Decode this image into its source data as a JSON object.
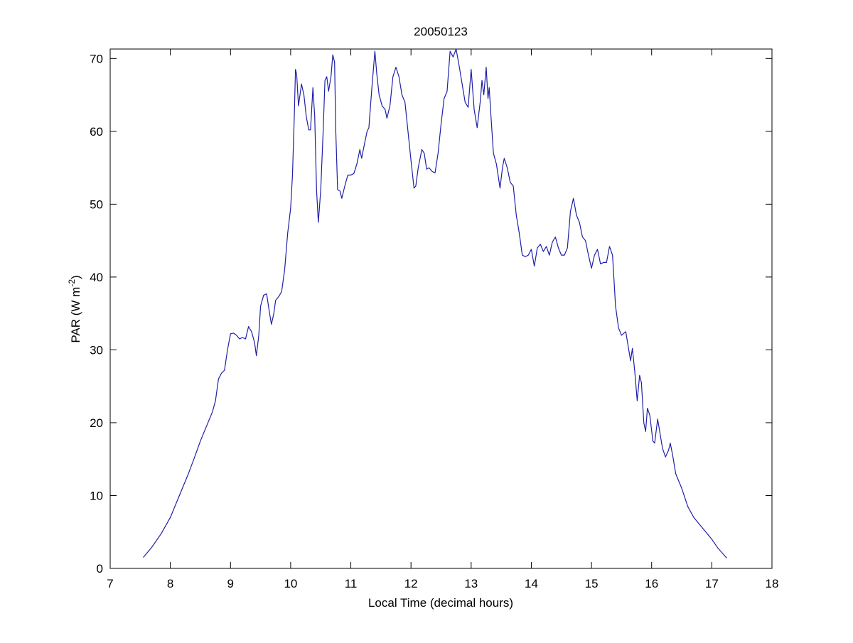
{
  "chart_data": {
    "type": "line",
    "title": "20050123",
    "x_label": "Local Time (decimal hours)",
    "y_label": [
      "PAR (W m",
      "-2",
      ")"
    ],
    "xlim": [
      7,
      18
    ],
    "xticks": [
      7,
      8,
      9,
      10,
      11,
      12,
      13,
      14,
      15,
      16,
      17,
      18
    ],
    "ylim": [
      0,
      71.3
    ],
    "yticks": [
      0,
      10,
      20,
      30,
      40,
      50,
      60,
      70
    ],
    "series": [
      {
        "color": "#1f1fa8",
        "x": [
          7.55,
          7.7,
          7.85,
          8.0,
          8.1,
          8.2,
          8.3,
          8.4,
          8.5,
          8.6,
          8.7,
          8.75,
          8.8,
          8.85,
          8.9,
          8.95,
          9.0,
          9.05,
          9.1,
          9.15,
          9.2,
          9.25,
          9.3,
          9.35,
          9.4,
          9.43,
          9.47,
          9.5,
          9.55,
          9.6,
          9.65,
          9.68,
          9.72,
          9.75,
          9.8,
          9.85,
          9.9,
          9.95,
          10.0,
          10.03,
          10.06,
          10.08,
          10.1,
          10.13,
          10.18,
          10.22,
          10.26,
          10.3,
          10.33,
          10.37,
          10.4,
          10.43,
          10.46,
          10.5,
          10.54,
          10.57,
          10.6,
          10.63,
          10.67,
          10.7,
          10.73,
          10.75,
          10.78,
          10.82,
          10.85,
          10.9,
          10.95,
          11.0,
          11.05,
          11.1,
          11.15,
          11.18,
          11.22,
          11.27,
          11.3,
          11.35,
          11.4,
          11.43,
          11.47,
          11.52,
          11.57,
          11.6,
          11.65,
          11.7,
          11.75,
          11.8,
          11.85,
          11.9,
          11.95,
          12.0,
          12.05,
          12.08,
          12.12,
          12.18,
          12.22,
          12.26,
          12.3,
          12.35,
          12.4,
          12.45,
          12.5,
          12.55,
          12.6,
          12.65,
          12.7,
          12.75,
          12.8,
          12.85,
          12.9,
          12.95,
          13.0,
          13.05,
          13.1,
          13.15,
          13.18,
          13.21,
          13.25,
          13.28,
          13.3,
          13.33,
          13.37,
          13.42,
          13.48,
          13.52,
          13.55,
          13.6,
          13.65,
          13.7,
          13.75,
          13.8,
          13.85,
          13.9,
          13.95,
          14.0,
          14.05,
          14.1,
          14.15,
          14.2,
          14.25,
          14.3,
          14.35,
          14.4,
          14.45,
          14.5,
          14.55,
          14.6,
          14.65,
          14.7,
          14.75,
          14.8,
          14.85,
          14.9,
          14.95,
          15.0,
          15.05,
          15.1,
          15.15,
          15.2,
          15.25,
          15.3,
          15.35,
          15.4,
          15.45,
          15.5,
          15.57,
          15.6,
          15.65,
          15.68,
          15.72,
          15.76,
          15.8,
          15.83,
          15.87,
          15.9,
          15.93,
          15.97,
          16.02,
          16.05,
          16.1,
          16.13,
          16.18,
          16.23,
          16.28,
          16.31,
          16.35,
          16.4,
          16.5,
          16.6,
          16.7,
          16.85,
          17.0,
          17.1,
          17.25
        ],
        "values": [
          1.5,
          3,
          4.8,
          7,
          9,
          11,
          13,
          15.2,
          17.5,
          19.5,
          21.5,
          23,
          26,
          26.8,
          27.2,
          30,
          32.2,
          32.3,
          32,
          31.5,
          31.7,
          31.5,
          33.2,
          32.5,
          31,
          29.2,
          32,
          36,
          37.5,
          37.7,
          35,
          33.5,
          35,
          36.8,
          37.3,
          38,
          41,
          46,
          49.5,
          54,
          62,
          68.5,
          67.8,
          63.5,
          66.5,
          65,
          62,
          60.2,
          60.2,
          66,
          62,
          52,
          47.5,
          52,
          60,
          67,
          67.5,
          65.5,
          67.5,
          70.5,
          69.5,
          60,
          52,
          51.8,
          50.8,
          52.5,
          54,
          54,
          54.2,
          55.5,
          57.5,
          56.3,
          58,
          60,
          60.5,
          66,
          71,
          68,
          65,
          63.5,
          63,
          61.8,
          63.5,
          67.5,
          68.8,
          67.5,
          65,
          64,
          60,
          56,
          52.2,
          52.5,
          55,
          57.5,
          57,
          54.8,
          55,
          54.5,
          54.3,
          57,
          61,
          64.5,
          65.5,
          71,
          70.2,
          71.3,
          69,
          66.5,
          64,
          63.3,
          68.5,
          63,
          60.5,
          64,
          67,
          65,
          68.8,
          64.5,
          66,
          62,
          57,
          55.5,
          52.2,
          55,
          56.3,
          55,
          53,
          52.5,
          48.5,
          46,
          43,
          42.8,
          43,
          43.8,
          41.5,
          44,
          44.5,
          43.5,
          44.2,
          43,
          44.8,
          45.5,
          44,
          43,
          43,
          44,
          49,
          50.8,
          48.5,
          47.5,
          45.5,
          45,
          43,
          41.2,
          43,
          43.8,
          41.8,
          42,
          42,
          44.2,
          43,
          36,
          33,
          32,
          32.5,
          31,
          28.5,
          30.2,
          27,
          23,
          26.5,
          25.5,
          20,
          18.8,
          22,
          21,
          17.5,
          17.2,
          20.5,
          19,
          16.5,
          15.3,
          16.2,
          17.2,
          15.5,
          13,
          11,
          8.5,
          7,
          5.5,
          4,
          2.8,
          1.4
        ]
      }
    ]
  }
}
